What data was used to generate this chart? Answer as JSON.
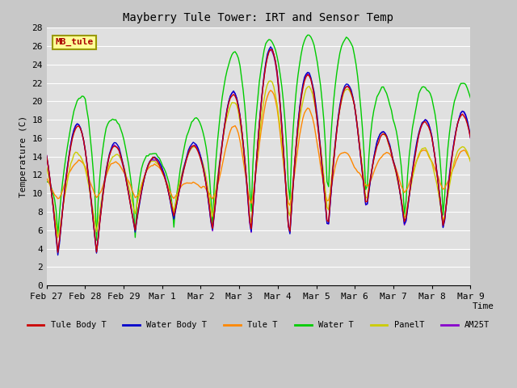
{
  "title": "Mayberry Tule Tower: IRT and Sensor Temp",
  "xlabel": "Time",
  "ylabel": "Temperature (C)",
  "ylim": [
    0,
    28
  ],
  "yticks": [
    0,
    2,
    4,
    6,
    8,
    10,
    12,
    14,
    16,
    18,
    20,
    22,
    24,
    26,
    28
  ],
  "xtick_labels": [
    "Feb 27",
    "Feb 28",
    "Feb 29",
    "Mar 1",
    "Mar 2",
    "Mar 3",
    "Mar 4",
    "Mar 5",
    "Mar 6",
    "Mar 7",
    "Mar 8",
    "Mar 9"
  ],
  "series_colors": {
    "Tule Body T": "#cc0000",
    "Water Body T": "#0000cc",
    "Tule T": "#ff8800",
    "Water T": "#00cc00",
    "PanelT": "#cccc00",
    "AM25T": "#8800cc"
  },
  "legend_label": "MB_tule",
  "legend_bg": "#ffff99",
  "legend_border": "#999900",
  "fig_bg": "#c8c8c8",
  "plot_bg": "#e0e0e0",
  "grid_color": "#ffffff",
  "font_family": "monospace"
}
